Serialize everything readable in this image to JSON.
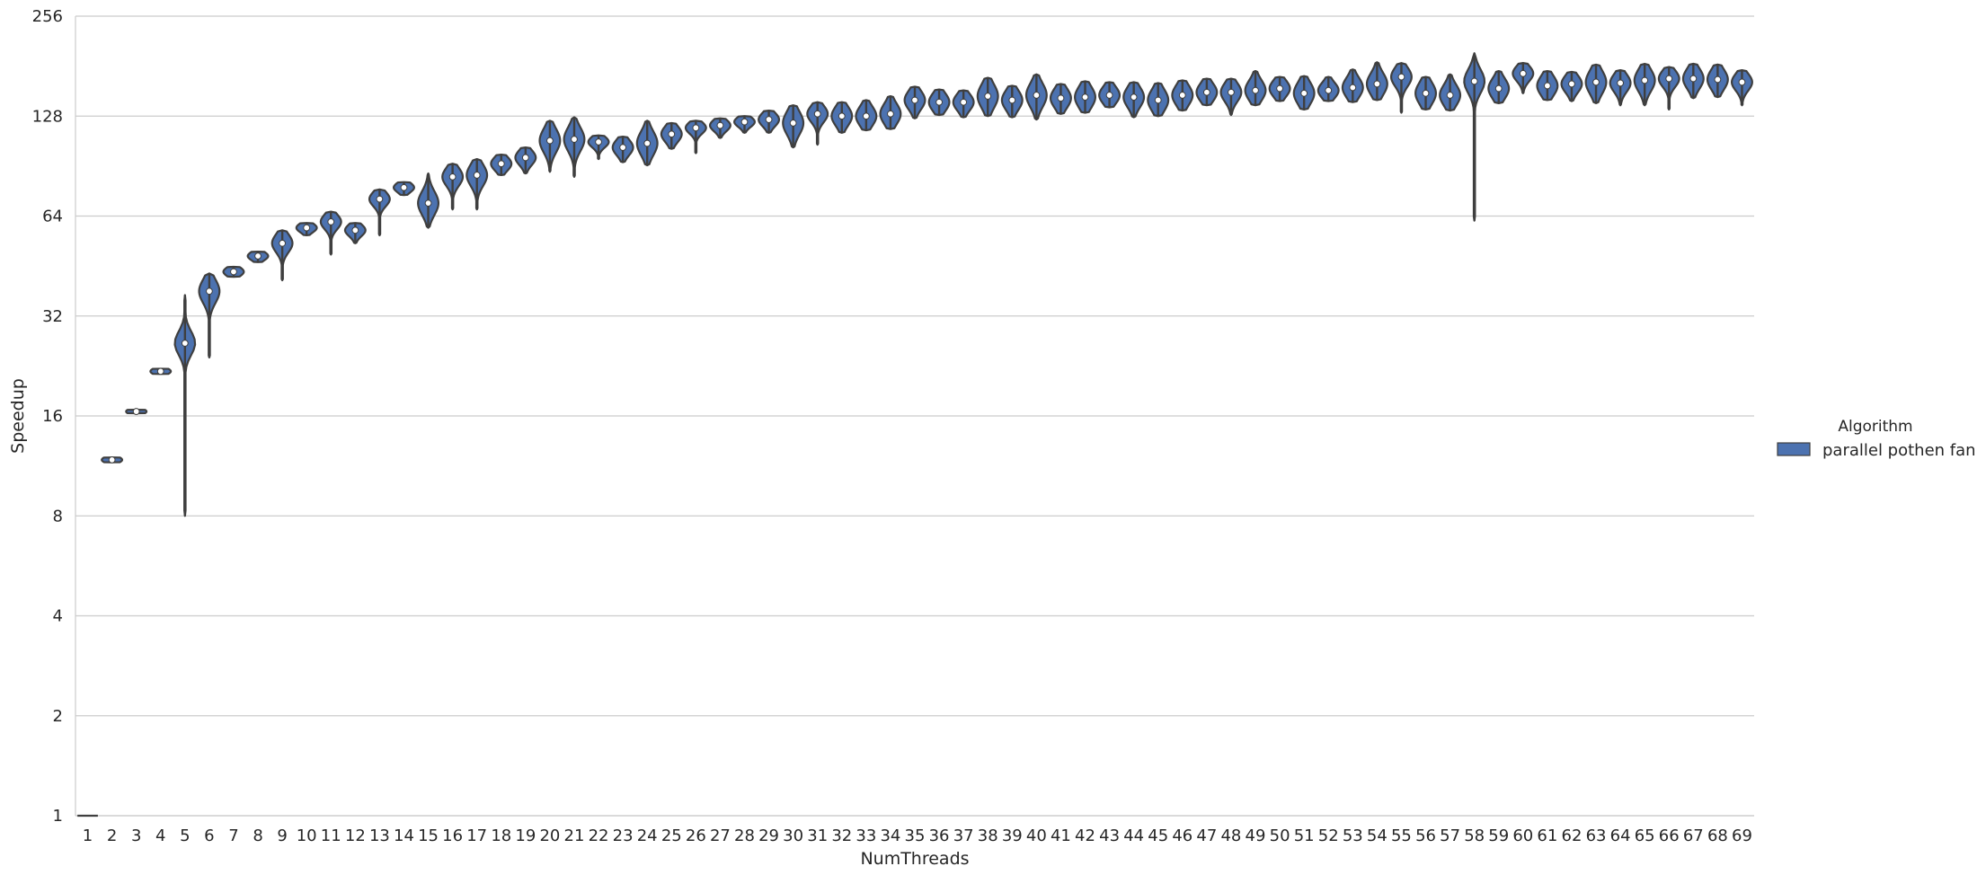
{
  "chart_data": {
    "type": "violin",
    "xlabel": "NumThreads",
    "ylabel": "Speedup",
    "y_scale": "log2",
    "ylim": [
      1,
      256
    ],
    "y_ticks": [
      1,
      2,
      4,
      8,
      16,
      32,
      64,
      128,
      256
    ],
    "y_tick_labels": [
      "1",
      "2",
      "4",
      "8",
      "16",
      "32",
      "64",
      "128",
      "256"
    ],
    "grid": "horizontal",
    "legend": {
      "title": "Algorithm",
      "position": "right",
      "entries": [
        "parallel pothen fan"
      ]
    },
    "series_color": "#4c72b0",
    "outline_color": "#3f3f3f",
    "series": [
      {
        "name": "parallel pothen fan",
        "x": [
          "1",
          "2",
          "3",
          "4",
          "5",
          "6",
          "7",
          "8",
          "9",
          "10",
          "11",
          "12",
          "13",
          "14",
          "15",
          "16",
          "17",
          "18",
          "19",
          "20",
          "21",
          "22",
          "23",
          "24",
          "25",
          "26",
          "27",
          "28",
          "29",
          "30",
          "31",
          "32",
          "33",
          "34",
          "35",
          "36",
          "37",
          "38",
          "39",
          "40",
          "41",
          "42",
          "43",
          "44",
          "45",
          "46",
          "47",
          "48",
          "49",
          "50",
          "51",
          "52",
          "53",
          "54",
          "55",
          "56",
          "57",
          "58",
          "59",
          "60",
          "61",
          "62",
          "63",
          "64",
          "65",
          "66",
          "67",
          "68",
          "69"
        ],
        "median": [
          1.0,
          11.8,
          16.5,
          21.8,
          26.5,
          38.0,
          43.5,
          48.5,
          53.0,
          59.0,
          61.5,
          58.0,
          72.0,
          78.0,
          70.0,
          84.0,
          85.0,
          92.0,
          96.0,
          108.0,
          109.0,
          107.0,
          103.0,
          106.0,
          113.0,
          118.0,
          120.0,
          123.0,
          125.0,
          122.0,
          130.0,
          128.0,
          128.0,
          130.0,
          143.0,
          141.0,
          141.0,
          147.0,
          143.0,
          148.0,
          145.0,
          146.0,
          148.0,
          146.0,
          143.0,
          148.0,
          151.0,
          151.0,
          153.0,
          155.0,
          150.0,
          153.0,
          156.0,
          160.0,
          168.0,
          150.0,
          148.0,
          163.0,
          155.0,
          172.0,
          158.0,
          160.0,
          162.0,
          161.0,
          164.0,
          166.0,
          166.0,
          165.0,
          162.0
        ],
        "min": [
          1.0,
          11.6,
          16.3,
          21.4,
          8.0,
          24.0,
          42.0,
          46.5,
          41.0,
          56.0,
          49.0,
          53.0,
          56.0,
          74.0,
          59.0,
          67.0,
          67.0,
          85.0,
          86.0,
          87.0,
          84.0,
          95.0,
          93.0,
          91.0,
          102.0,
          99.0,
          110.0,
          114.0,
          114.0,
          103.0,
          105.0,
          114.0,
          116.0,
          117.0,
          126.0,
          129.0,
          127.0,
          128.0,
          127.0,
          125.0,
          130.0,
          131.0,
          136.0,
          127.0,
          128.0,
          133.0,
          138.0,
          129.0,
          138.0,
          142.0,
          134.0,
          142.0,
          141.0,
          143.0,
          131.0,
          134.0,
          133.0,
          62.0,
          140.0,
          150.0,
          143.0,
          142.0,
          140.0,
          138.0,
          138.0,
          134.0,
          145.0,
          146.0,
          138.0
        ],
        "max": [
          1.0,
          12.0,
          16.7,
          22.2,
          37.0,
          43.0,
          45.0,
          50.0,
          58.0,
          61.0,
          66.0,
          61.0,
          77.0,
          81.0,
          86.0,
          92.0,
          95.0,
          98.0,
          103.0,
          124.0,
          127.0,
          112.0,
          111.0,
          124.0,
          122.0,
          124.0,
          126.0,
          128.0,
          133.0,
          138.0,
          141.0,
          141.0,
          143.0,
          147.0,
          157.0,
          154.0,
          153.0,
          167.0,
          158.0,
          171.0,
          160.0,
          163.0,
          162.0,
          162.0,
          161.0,
          164.0,
          166.0,
          166.0,
          175.0,
          168.0,
          169.0,
          168.0,
          177.0,
          186.0,
          185.0,
          168.0,
          171.0,
          198.0,
          175.0,
          185.0,
          175.0,
          174.0,
          183.0,
          176.0,
          184.0,
          180.0,
          184.0,
          183.0,
          176.0
        ]
      }
    ]
  }
}
